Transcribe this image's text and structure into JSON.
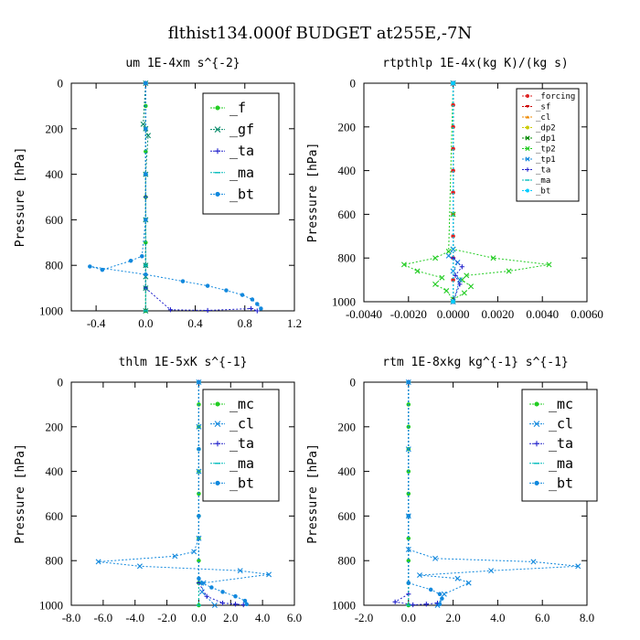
{
  "figure_title": "flthist134.000f  BUDGET at255E,-7N",
  "chart_data": [
    {
      "type": "line",
      "title": "um   1E-4xm s^{-2}",
      "ylabel": "Pressure [hPa]",
      "xlabel": "",
      "xlim": [
        -0.6,
        1.2
      ],
      "ylim": [
        1000,
        0
      ],
      "x_ticks": [
        -0.4,
        0.0,
        0.4,
        0.8,
        1.2
      ],
      "x_tick_labels": [
        "-0.4",
        "0.0",
        "0.4",
        "0.8",
        "1.2"
      ],
      "y_ticks": [
        0,
        200,
        400,
        600,
        800,
        1000
      ],
      "y_tick_labels": [
        "0",
        "200",
        "400",
        "600",
        "800",
        "1000"
      ],
      "legend": {
        "position": "top-right",
        "style": "large",
        "entries": [
          "_f",
          "_gf",
          "_ta",
          "_ma",
          "_bt"
        ]
      },
      "series": [
        {
          "name": "_f",
          "color": "#22cc22",
          "marker": "o",
          "x": [
            0.0,
            0.0,
            0.0,
            0.0,
            0.0,
            0.0,
            0.0,
            0.0,
            0.0,
            0.0,
            0.0
          ],
          "y": [
            0,
            100,
            200,
            300,
            400,
            500,
            600,
            700,
            800,
            900,
            1000
          ]
        },
        {
          "name": "_gf",
          "color": "#008866",
          "marker": "x",
          "x": [
            0.0,
            -0.02,
            0.0,
            0.02,
            0.0,
            0.0,
            0.0,
            0.0,
            0.0,
            0.0
          ],
          "y": [
            0,
            180,
            200,
            230,
            400,
            600,
            800,
            850,
            900,
            1000
          ]
        },
        {
          "name": "_ta",
          "color": "#2222cc",
          "marker": "+",
          "x": [
            0.0,
            0.0,
            0.0,
            0.2,
            0.5,
            0.85,
            0.9
          ],
          "y": [
            0,
            500,
            900,
            995,
            998,
            990,
            1000
          ]
        },
        {
          "name": "_ma",
          "color": "#00bbbb",
          "marker": "-",
          "x": [
            0.0,
            0.0,
            0.0,
            0.0
          ],
          "y": [
            0,
            400,
            800,
            1000
          ]
        },
        {
          "name": "_bt",
          "color": "#1188dd",
          "marker": "o",
          "x": [
            0.0,
            0.0,
            0.0,
            0.0,
            -0.03,
            -0.12,
            -0.35,
            -0.45,
            0.0,
            0.3,
            0.5,
            0.65,
            0.78,
            0.86,
            0.9,
            0.93
          ],
          "y": [
            0,
            200,
            400,
            600,
            760,
            780,
            820,
            805,
            840,
            870,
            890,
            910,
            930,
            950,
            970,
            990
          ]
        }
      ]
    },
    {
      "type": "line",
      "title": "rtpthlp   1E-4x(kg K)/(kg s)",
      "ylabel": "Pressure [hPa]",
      "xlabel": "",
      "xlim": [
        -0.004,
        0.006
      ],
      "ylim": [
        1000,
        0
      ],
      "x_ticks": [
        -0.004,
        -0.002,
        0.0,
        0.002,
        0.004,
        0.006
      ],
      "x_tick_labels": [
        "-0.0040",
        "-0.0020",
        "0.0000",
        "0.0020",
        "0.0040",
        "0.0060"
      ],
      "y_ticks": [
        0,
        200,
        400,
        600,
        800,
        1000
      ],
      "y_tick_labels": [
        "0",
        "200",
        "400",
        "600",
        "800",
        "1000"
      ],
      "legend": {
        "position": "top-right",
        "style": "small",
        "entries": [
          "_forcing",
          "_sf",
          "_cl",
          "_dp2",
          "_dp1",
          "_tp2",
          "_tp1",
          "_ta",
          "_ma",
          "_bt"
        ]
      },
      "series": [
        {
          "name": "_forcing",
          "color": "#dd2222",
          "marker": "o",
          "x": [
            0.0,
            0.0,
            0.0,
            0.0,
            0.0,
            0.0,
            0.0,
            0.0,
            0.0,
            0.0,
            0.0
          ],
          "y": [
            0,
            100,
            200,
            300,
            400,
            500,
            600,
            700,
            800,
            900,
            1000
          ]
        },
        {
          "name": "_sf",
          "color": "#cc0000",
          "marker": "v",
          "x": [
            0.0,
            0.0
          ],
          "y": [
            0,
            1000
          ]
        },
        {
          "name": "_cl",
          "color": "#ee8800",
          "marker": "^",
          "x": [
            0.0,
            0.0
          ],
          "y": [
            0,
            1000
          ]
        },
        {
          "name": "_dp2",
          "color": "#cccc00",
          "marker": "o",
          "x": [
            0.0,
            0.0
          ],
          "y": [
            0,
            1000
          ]
        },
        {
          "name": "_dp1",
          "color": "#008800",
          "marker": "x",
          "x": [
            0.0,
            0.0
          ],
          "y": [
            0,
            1000
          ]
        },
        {
          "name": "_tp2",
          "color": "#22cc22",
          "marker": "x",
          "x": [
            0.0,
            0.0,
            0.0,
            0.0018,
            0.0043,
            0.0025,
            0.0006,
            0.0004,
            0.0008,
            0.0005,
            0.0,
            -0.0003,
            -0.0008,
            -0.0005,
            -0.0016,
            -0.0022,
            -0.0008,
            -0.0002,
            0.0
          ],
          "y": [
            0,
            600,
            760,
            800,
            830,
            860,
            880,
            900,
            930,
            960,
            990,
            950,
            920,
            890,
            860,
            830,
            800,
            770,
            0
          ]
        },
        {
          "name": "_tp1",
          "color": "#1188dd",
          "marker": "x",
          "x": [
            0.0,
            0.0,
            -0.0002,
            0.0002,
            0.0,
            0.0003,
            0.0
          ],
          "y": [
            0,
            760,
            790,
            820,
            860,
            900,
            1000
          ]
        },
        {
          "name": "_ta",
          "color": "#2222cc",
          "marker": "+",
          "x": [
            0.0,
            0.0,
            0.0004,
            0.0001,
            0.0003,
            0.0
          ],
          "y": [
            0,
            800,
            840,
            880,
            920,
            1000
          ]
        },
        {
          "name": "_ma",
          "color": "#00bbbb",
          "marker": "-",
          "x": [
            0.0,
            0.0
          ],
          "y": [
            0,
            1000
          ]
        },
        {
          "name": "_bt",
          "color": "#00ccff",
          "marker": "o",
          "x": [
            0.0,
            0.0
          ],
          "y": [
            0,
            1000
          ]
        }
      ]
    },
    {
      "type": "line",
      "title": "thlm   1E-5xK s^{-1}",
      "ylabel": "Pressure [hPa]",
      "xlabel": "",
      "xlim": [
        -8.0,
        6.0
      ],
      "ylim": [
        1000,
        0
      ],
      "x_ticks": [
        -8.0,
        -6.0,
        -4.0,
        -2.0,
        0.0,
        2.0,
        4.0,
        6.0
      ],
      "x_tick_labels": [
        "-8.0",
        "-6.0",
        "-4.0",
        "-2.0",
        "0.0",
        "2.0",
        "4.0",
        "6.0"
      ],
      "y_ticks": [
        0,
        200,
        400,
        600,
        800,
        1000
      ],
      "y_tick_labels": [
        "0",
        "200",
        "400",
        "600",
        "800",
        "1000"
      ],
      "legend": {
        "position": "top-right",
        "style": "large",
        "entries": [
          "_mc",
          "_cl",
          "_ta",
          "_ma",
          "_bt"
        ]
      },
      "series": [
        {
          "name": "_mc",
          "color": "#22cc22",
          "marker": "o",
          "x": [
            0.0,
            0.0,
            0.0,
            0.0,
            0.0,
            0.0,
            0.0,
            0.0,
            0.0,
            0.0,
            0.0
          ],
          "y": [
            0,
            100,
            200,
            300,
            400,
            500,
            600,
            700,
            800,
            900,
            1000
          ]
        },
        {
          "name": "_cl",
          "color": "#1188dd",
          "marker": "x",
          "x": [
            0.0,
            0.0,
            0.0,
            0.0,
            -0.3,
            -1.5,
            -6.3,
            -3.7,
            2.6,
            4.4,
            0.3,
            0.2,
            1.0
          ],
          "y": [
            0,
            200,
            400,
            700,
            760,
            780,
            805,
            825,
            845,
            862,
            900,
            940,
            1000
          ]
        },
        {
          "name": "_ta",
          "color": "#2222cc",
          "marker": "+",
          "x": [
            0.0,
            0.0,
            0.5,
            1.5,
            2.3,
            2.8
          ],
          "y": [
            0,
            900,
            960,
            990,
            995,
            998
          ]
        },
        {
          "name": "_ma",
          "color": "#00bbbb",
          "marker": "-",
          "x": [
            0.0,
            0.0
          ],
          "y": [
            0,
            1000
          ]
        },
        {
          "name": "_bt",
          "color": "#1188dd",
          "marker": "o",
          "x": [
            0.0,
            0.0,
            0.0,
            0.0,
            0.2,
            0.8,
            1.5,
            2.3,
            2.9,
            3.0
          ],
          "y": [
            0,
            300,
            600,
            880,
            900,
            920,
            940,
            960,
            980,
            995
          ]
        }
      ]
    },
    {
      "type": "line",
      "title": "rtm   1E-8xkg kg^{-1} s^{-1}",
      "ylabel": "Pressure [hPa]",
      "xlabel": "",
      "xlim": [
        -2.0,
        8.0
      ],
      "ylim": [
        1000,
        0
      ],
      "x_ticks": [
        -2.0,
        0.0,
        2.0,
        4.0,
        6.0,
        8.0
      ],
      "x_tick_labels": [
        "-2.0",
        "0.0",
        "2.0",
        "4.0",
        "6.0",
        "8.0"
      ],
      "y_ticks": [
        0,
        200,
        400,
        600,
        800,
        1000
      ],
      "y_tick_labels": [
        "0",
        "200",
        "400",
        "600",
        "800",
        "1000"
      ],
      "legend": {
        "position": "top-right",
        "style": "large",
        "entries": [
          "_mc",
          "_cl",
          "_ta",
          "_ma",
          "_bt"
        ]
      },
      "series": [
        {
          "name": "_mc",
          "color": "#22cc22",
          "marker": "o",
          "x": [
            0.0,
            0.0,
            0.0,
            0.0,
            0.0,
            0.0,
            0.0,
            0.0,
            0.0,
            0.0,
            0.0
          ],
          "y": [
            0,
            100,
            200,
            300,
            400,
            500,
            600,
            700,
            800,
            900,
            1000
          ]
        },
        {
          "name": "_cl",
          "color": "#1188dd",
          "marker": "x",
          "x": [
            0.0,
            0.0,
            0.0,
            0.0,
            1.2,
            5.6,
            7.6,
            3.7,
            0.5,
            2.2,
            2.7,
            1.6,
            1.3
          ],
          "y": [
            0,
            300,
            600,
            750,
            790,
            805,
            825,
            845,
            865,
            880,
            900,
            950,
            1000
          ]
        },
        {
          "name": "_ta",
          "color": "#2222cc",
          "marker": "+",
          "x": [
            0.0,
            0.0,
            -0.6,
            0.2,
            0.8,
            1.3
          ],
          "y": [
            0,
            950,
            985,
            998,
            995,
            990
          ]
        },
        {
          "name": "_ma",
          "color": "#00bbbb",
          "marker": "-",
          "x": [
            0.0,
            0.0
          ],
          "y": [
            0,
            1000
          ]
        },
        {
          "name": "_bt",
          "color": "#1188dd",
          "marker": "o",
          "x": [
            0.0,
            0.0,
            0.0,
            1.0,
            1.4,
            1.5,
            1.4
          ],
          "y": [
            0,
            600,
            900,
            930,
            950,
            970,
            995
          ]
        }
      ]
    }
  ]
}
